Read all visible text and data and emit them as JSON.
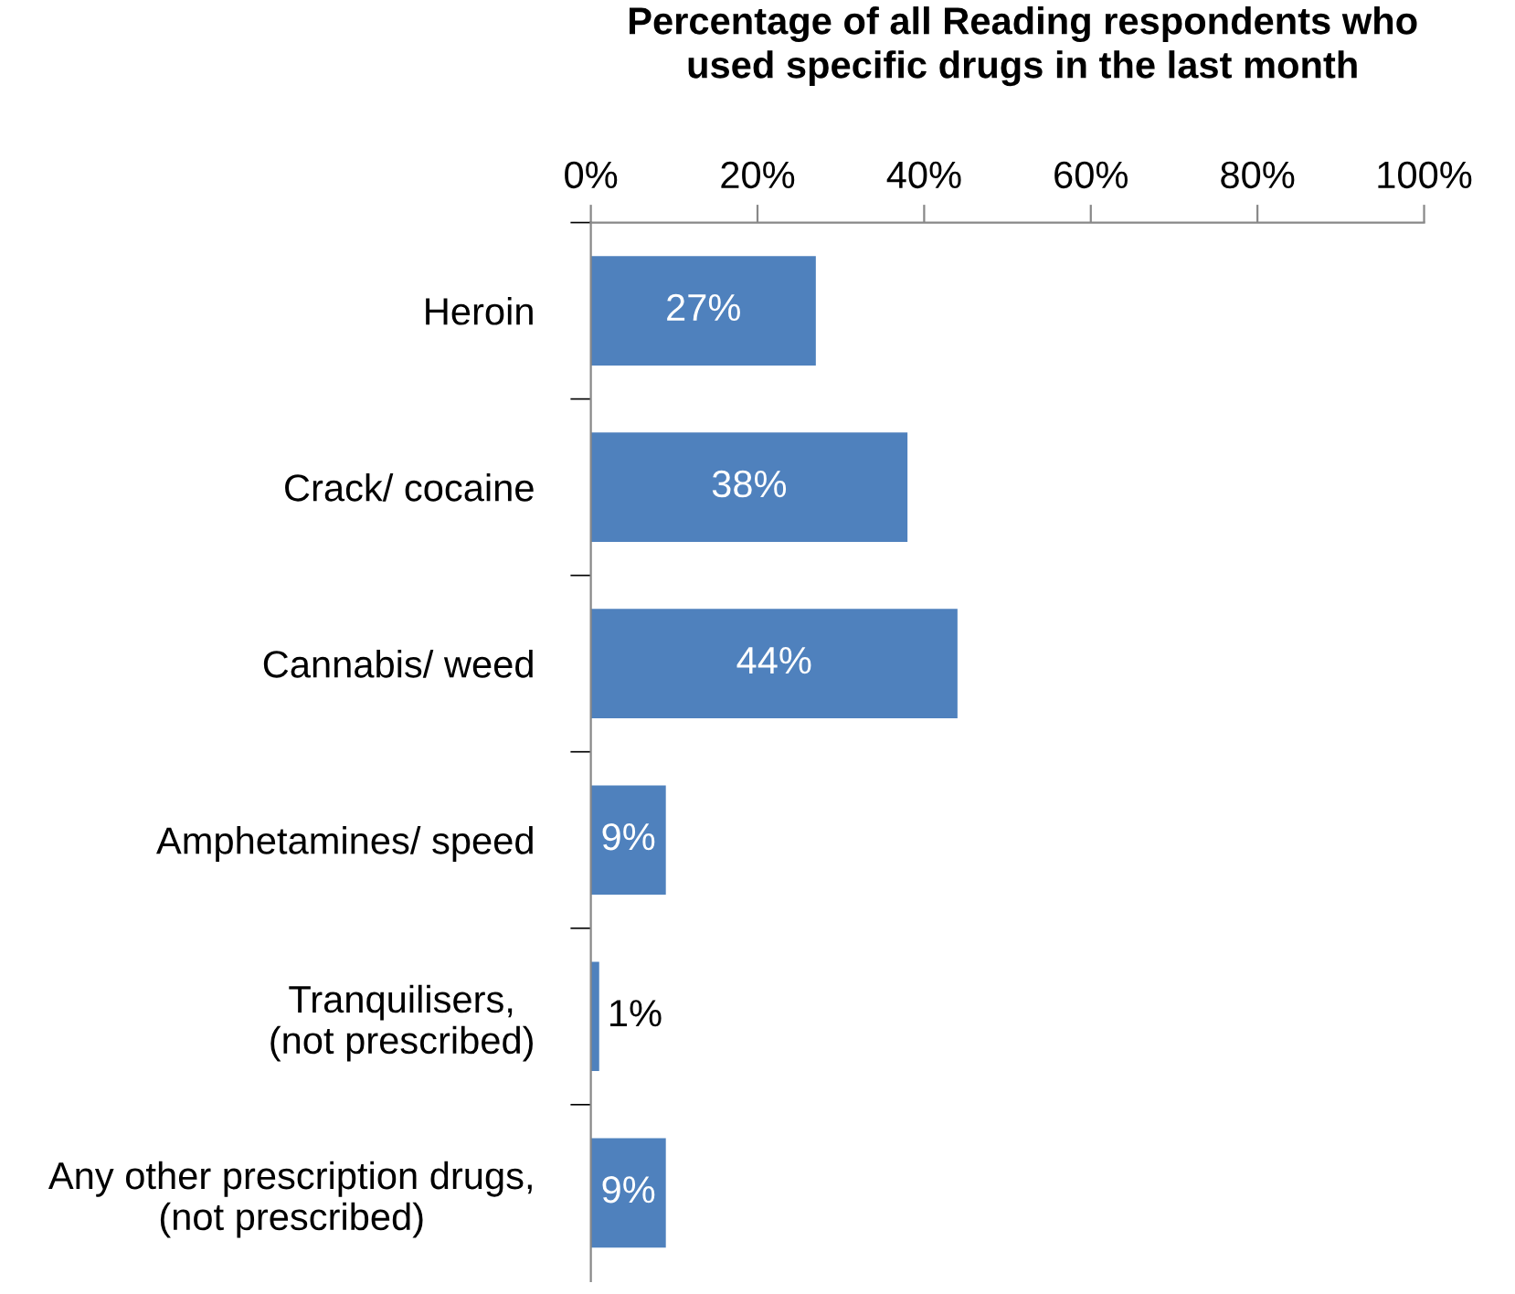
{
  "chart_data": {
    "type": "bar",
    "orientation": "horizontal",
    "title": "Percentage of all Reading respondents who\nused specific drugs in the last month",
    "categories": [
      "Heroin",
      "Crack/ cocaine",
      "Cannabis/ weed",
      "Amphetamines/ speed",
      "Tranquilisers,\n(not prescribed)",
      "Any other prescription drugs,\n(not prescribed)"
    ],
    "values": [
      27,
      38,
      44,
      9,
      1,
      9
    ],
    "value_labels": [
      "27%",
      "38%",
      "44%",
      "9%",
      "1%",
      "9%"
    ],
    "color": "#4f81bd",
    "xlim": [
      0,
      100
    ],
    "xticks": [
      {
        "value": 0,
        "label": "0%"
      },
      {
        "value": 20,
        "label": "20%"
      },
      {
        "value": 40,
        "label": "40%"
      },
      {
        "value": 60,
        "label": "60%"
      },
      {
        "value": 80,
        "label": "80%"
      },
      {
        "value": 100,
        "label": "100%"
      }
    ],
    "grid": false,
    "legend": false
  }
}
